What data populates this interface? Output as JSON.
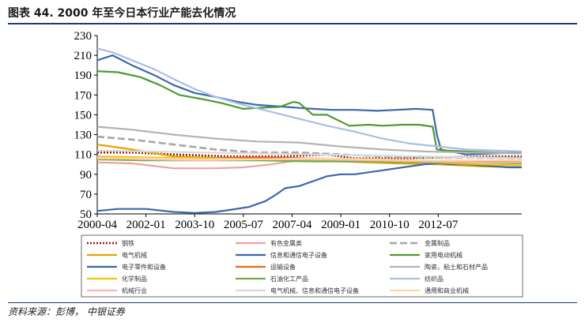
{
  "header": {
    "title": "图表 44. 2000 年至今日本行业产能去化情况"
  },
  "footer": {
    "source": "资料来源：彭博，  中银证券"
  },
  "chart_data": {
    "type": "line",
    "xlabel": "",
    "ylabel": "",
    "ylim": [
      50,
      230
    ],
    "yticks": [
      50,
      70,
      90,
      110,
      130,
      150,
      170,
      190,
      210,
      230
    ],
    "xlim": [
      2000.25,
      2015.5
    ],
    "xtick_labels": [
      "2000-04",
      "2002-01",
      "2003-10",
      "2005-07",
      "2007-04",
      "2009-01",
      "2010-10",
      "2012-07"
    ],
    "xtick_values": [
      2000.25,
      2002.0,
      2003.75,
      2005.5,
      2007.25,
      2009.0,
      2010.75,
      2012.5
    ],
    "legend_position": "bottom",
    "series": [
      {
        "name": "钢铁",
        "color": "#8b1a1a",
        "dash": "dotted",
        "x": [
          2000.25,
          2001.5,
          2003,
          2005,
          2007,
          2008.5,
          2009.5,
          2011,
          2012.5,
          2014,
          2015.5
        ],
        "y": [
          112,
          112,
          110,
          108,
          108,
          110,
          106,
          106,
          107,
          108,
          108
        ]
      },
      {
        "name": "有色金属类",
        "color": "#f0a0a0",
        "dash": "solid",
        "x": [
          2000.25,
          2001.5,
          2003,
          2004.5,
          2005.5,
          2006.5,
          2007.5,
          2008.5,
          2010,
          2012,
          2014,
          2015.5
        ],
        "y": [
          102,
          101,
          96,
          96,
          97,
          100,
          104,
          104,
          103,
          103,
          103,
          103
        ]
      },
      {
        "name": "金属制品",
        "color": "#a6a6a6",
        "dash": "longdash",
        "x": [
          2000.25,
          2001.5,
          2003,
          2004.5,
          2006,
          2007.5,
          2009,
          2010.5,
          2012,
          2013.5,
          2015.5
        ],
        "y": [
          128,
          125,
          120,
          115,
          112,
          112,
          110,
          108,
          107,
          107,
          106
        ]
      },
      {
        "name": "电气机械",
        "color": "#e8a000",
        "dash": "solid",
        "x": [
          2000.25,
          2001.5,
          2003,
          2005,
          2007,
          2009,
          2011,
          2012.5,
          2014,
          2015.5
        ],
        "y": [
          120,
          115,
          108,
          106,
          105,
          103,
          101,
          100,
          98,
          97
        ]
      },
      {
        "name": "信息和通信电子设备",
        "color": "#3a68a8",
        "dash": "solid",
        "x": [
          2000.25,
          2000.8,
          2001.5,
          2002.3,
          2003,
          2003.75,
          2004.5,
          2005.3,
          2006,
          2006.5,
          2007,
          2007.5,
          2008,
          2008.7,
          2009.5,
          2010.3,
          2011,
          2011.7,
          2012.3,
          2012.45,
          2012.6,
          2013.5,
          2014.5,
          2015.5
        ],
        "y": [
          205,
          210,
          200,
          190,
          180,
          172,
          168,
          163,
          160,
          159,
          158,
          157,
          156,
          155,
          155,
          154,
          155,
          156,
          155,
          130,
          115,
          110,
          111,
          112
        ]
      },
      {
        "name": "家用电动机械",
        "color": "#4e9a2e",
        "dash": "solid",
        "x": [
          2000.25,
          2001,
          2001.8,
          2002.5,
          2003.2,
          2004,
          2004.7,
          2005.5,
          2006,
          2006.8,
          2007.3,
          2007.5,
          2008,
          2008.5,
          2009.3,
          2010,
          2010.5,
          2011.2,
          2011.8,
          2012.3,
          2012.45,
          2012.7,
          2013.5,
          2014.5,
          2015.5
        ],
        "y": [
          194,
          193,
          188,
          180,
          170,
          166,
          162,
          156,
          157,
          158,
          163,
          162,
          150,
          150,
          139,
          140,
          139,
          140,
          140,
          138,
          115,
          114,
          113,
          112,
          111
        ]
      },
      {
        "name": "电子零件和设备",
        "color": "#3a68a8",
        "dash": "solid",
        "x": [
          2000.25,
          2001,
          2002,
          2003,
          2003.75,
          2004.5,
          2005,
          2005.7,
          2006.3,
          2006.7,
          2007,
          2007.5,
          2008,
          2008.5,
          2009,
          2009.5,
          2010,
          2010.5,
          2011,
          2011.5,
          2012,
          2012.5,
          2013,
          2013.5,
          2014,
          2014.5,
          2015,
          2015.5
        ],
        "y": [
          53,
          55,
          55,
          52,
          51,
          52,
          54,
          57,
          63,
          70,
          76,
          78,
          83,
          88,
          90,
          90,
          92,
          94,
          96,
          98,
          100,
          101,
          100,
          100,
          99,
          98,
          97,
          97
        ]
      },
      {
        "name": "运输设备",
        "color": "#e86820",
        "dash": "solid",
        "x": [
          2000.25,
          2002,
          2004,
          2006,
          2008,
          2010,
          2012,
          2014,
          2015.5
        ],
        "y": [
          107,
          106,
          106,
          107,
          106,
          105,
          104,
          103,
          103
        ]
      },
      {
        "name": "陶瓷，粘土和石材产品",
        "color": "#b3b3b3",
        "dash": "solid",
        "x": [
          2000.25,
          2001.5,
          2003,
          2004.5,
          2006,
          2007.5,
          2009,
          2010.5,
          2012,
          2013.5,
          2015.5
        ],
        "y": [
          138,
          135,
          130,
          126,
          123,
          122,
          118,
          115,
          113,
          112,
          111
        ]
      },
      {
        "name": "化学制品",
        "color": "#f2c500",
        "dash": "solid",
        "x": [
          2000.25,
          2002,
          2004,
          2006,
          2008,
          2010,
          2012,
          2014,
          2015.5
        ],
        "y": [
          108,
          107,
          106,
          105,
          104,
          103,
          102,
          100,
          99
        ]
      },
      {
        "name": "石油化工产品",
        "color": "#70ad47",
        "dash": "solid",
        "x": [
          2000.25,
          2002,
          2004,
          2006,
          2008,
          2010,
          2012,
          2014,
          2015.5
        ],
        "y": [
          105,
          104,
          104,
          104,
          103,
          103,
          102,
          102,
          101
        ]
      },
      {
        "name": "纺织品",
        "color": "#a9bfe3",
        "dash": "solid",
        "x": [
          2000.25,
          2000.8,
          2001.5,
          2002.3,
          2003,
          2003.75,
          2004.5,
          2005.5,
          2006.5,
          2007.5,
          2008.5,
          2009.5,
          2010.5,
          2011.5,
          2012.5,
          2013.5,
          2014.5,
          2015.5
        ],
        "y": [
          217,
          213,
          205,
          196,
          186,
          176,
          168,
          160,
          153,
          146,
          139,
          133,
          126,
          121,
          118,
          115,
          114,
          113
        ]
      },
      {
        "name": "机械行业",
        "color": "#f4b6b6",
        "dash": "solid",
        "x": [
          2000.25,
          2002,
          2004,
          2006,
          2008,
          2010,
          2012,
          2014,
          2015.5
        ],
        "y": [
          107,
          105,
          104,
          105,
          105,
          104,
          103,
          102,
          102
        ]
      },
      {
        "name": "电气机械、信息和通信电子设备",
        "color": "#d9d9d9",
        "dash": "solid",
        "x": [
          2000.25,
          2002,
          2004,
          2006,
          2008,
          2010,
          2012,
          2014,
          2015.5
        ],
        "y": [
          114,
          113,
          112,
          111,
          110,
          109,
          108,
          107,
          106
        ]
      },
      {
        "name": "通用和商业机械",
        "color": "#fcd9a8",
        "dash": "solid",
        "x": [
          2000.25,
          2002,
          2004,
          2006,
          2008,
          2010,
          2012,
          2014,
          2015.5
        ],
        "y": [
          106,
          106,
          105,
          105,
          106,
          105,
          104,
          104,
          104
        ]
      }
    ]
  }
}
